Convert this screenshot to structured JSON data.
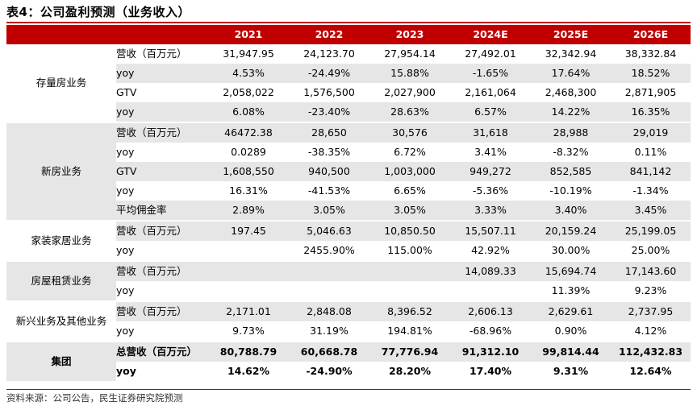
{
  "title": "表4：公司盈利预测（业务收入）",
  "source": "资料来源：公司公告，民生证券研究院预测",
  "colors": {
    "header_bg": "#c00000",
    "header_text": "#ffffff",
    "shade": "#e6e6e6"
  },
  "years": [
    "2021",
    "2022",
    "2023",
    "2024E",
    "2025E",
    "2026E"
  ],
  "groups": [
    {
      "name": "存量房业务",
      "rows": [
        {
          "label": "营收（百万元）",
          "values": [
            "31,947.95",
            "24,123.70",
            "27,954.14",
            "27,492.01",
            "32,342.94",
            "38,332.84"
          ]
        },
        {
          "label": "yoy",
          "values": [
            "4.53%",
            "-24.49%",
            "15.88%",
            "-1.65%",
            "17.64%",
            "18.52%"
          ]
        },
        {
          "label": "GTV",
          "values": [
            "2,058,022",
            "1,576,500",
            "2,027,900",
            "2,161,064",
            "2,468,300",
            "2,871,905"
          ]
        },
        {
          "label": "yoy",
          "values": [
            "6.08%",
            "-23.40%",
            "28.63%",
            "6.57%",
            "14.22%",
            "16.35%"
          ]
        }
      ]
    },
    {
      "name": "新房业务",
      "rows": [
        {
          "label": "营收（百万元）",
          "values": [
            "46472.38",
            "28,650",
            "30,576",
            "31,618",
            "28,988",
            "29,019"
          ]
        },
        {
          "label": "yoy",
          "values": [
            "0.0289",
            "-38.35%",
            "6.72%",
            "3.41%",
            "-8.32%",
            "0.11%"
          ]
        },
        {
          "label": "GTV",
          "values": [
            "1,608,550",
            "940,500",
            "1,003,000",
            "949,272",
            "852,585",
            "841,142"
          ]
        },
        {
          "label": "yoy",
          "values": [
            "16.31%",
            "-41.53%",
            "6.65%",
            "-5.36%",
            "-10.19%",
            "-1.34%"
          ]
        },
        {
          "label": "平均佣金率",
          "values": [
            "2.89%",
            "3.05%",
            "3.05%",
            "3.33%",
            "3.40%",
            "3.45%"
          ]
        }
      ]
    },
    {
      "name": "家装家居业务",
      "rows": [
        {
          "label": "营收（百万元）",
          "values": [
            "197.45",
            "5,046.63",
            "10,850.50",
            "15,507.11",
            "20,159.24",
            "25,199.05"
          ]
        },
        {
          "label": "yoy",
          "values": [
            "",
            "2455.90%",
            "115.00%",
            "42.92%",
            "30.00%",
            "25.00%"
          ]
        }
      ]
    },
    {
      "name": "房屋租赁业务",
      "rows": [
        {
          "label": "营收（百万元）",
          "values": [
            "",
            "",
            "",
            "14,089.33",
            "15,694.74",
            "17,143.60"
          ]
        },
        {
          "label": "yoy",
          "values": [
            "",
            "",
            "",
            "",
            "11.39%",
            "9.23%"
          ]
        }
      ]
    },
    {
      "name": "新兴业务及其他业务",
      "rows": [
        {
          "label": "营收（百万元）",
          "values": [
            "2,171.01",
            "2,848.08",
            "8,396.52",
            "2,606.13",
            "2,629.61",
            "2,737.95"
          ]
        },
        {
          "label": "yoy",
          "values": [
            "9.73%",
            "31.19%",
            "194.81%",
            "-68.96%",
            "0.90%",
            "4.12%"
          ]
        }
      ]
    },
    {
      "name": "集团",
      "rows": [
        {
          "label": "总营收（百万元）",
          "values": [
            "80,788.79",
            "60,668.78",
            "77,776.94",
            "91,312.10",
            "99,814.44",
            "112,432.83"
          ]
        },
        {
          "label": "yoy",
          "values": [
            "14.62%",
            "-24.90%",
            "28.20%",
            "17.40%",
            "9.31%",
            "12.64%"
          ]
        }
      ]
    }
  ]
}
